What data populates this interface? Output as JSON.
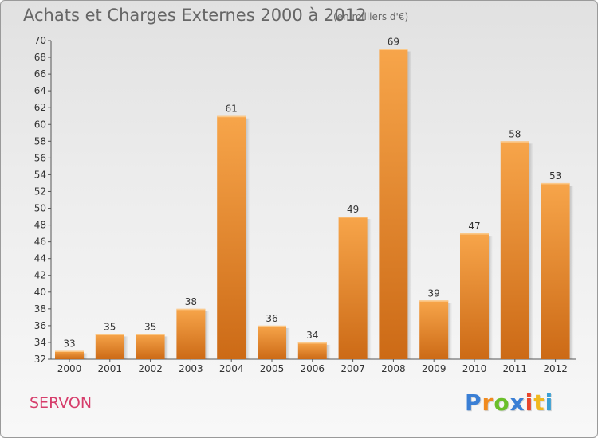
{
  "header": {
    "title": "Achats et Charges Externes 2000 à 2012",
    "unit": "(en milliers d'€)"
  },
  "footer": {
    "place": "SERVON",
    "logo": {
      "letters": [
        "P",
        "r",
        "o",
        "x",
        "i",
        "t",
        "i"
      ],
      "colors": [
        "#3a7fd5",
        "#f08a1e",
        "#6bbf2a",
        "#3a7fd5",
        "#e8452c",
        "#f0b81e",
        "#3aa0d5"
      ]
    }
  },
  "chart_data": {
    "type": "bar",
    "title": "Achats et Charges Externes 2000 à 2012",
    "subtitle": "(en milliers d'€)",
    "categories": [
      "2000",
      "2001",
      "2002",
      "2003",
      "2004",
      "2005",
      "2006",
      "2007",
      "2008",
      "2009",
      "2010",
      "2011",
      "2012"
    ],
    "values": [
      33,
      35,
      35,
      38,
      61,
      36,
      34,
      49,
      69,
      39,
      47,
      58,
      53
    ],
    "ylim": [
      32,
      70
    ],
    "yticks": [
      32,
      34,
      36,
      38,
      40,
      42,
      44,
      46,
      48,
      50,
      52,
      54,
      56,
      58,
      60,
      62,
      64,
      66,
      68,
      70
    ],
    "grid": false,
    "colors": {
      "bar_light": "#f7a54a",
      "bar_dark": "#cc6a16"
    }
  }
}
